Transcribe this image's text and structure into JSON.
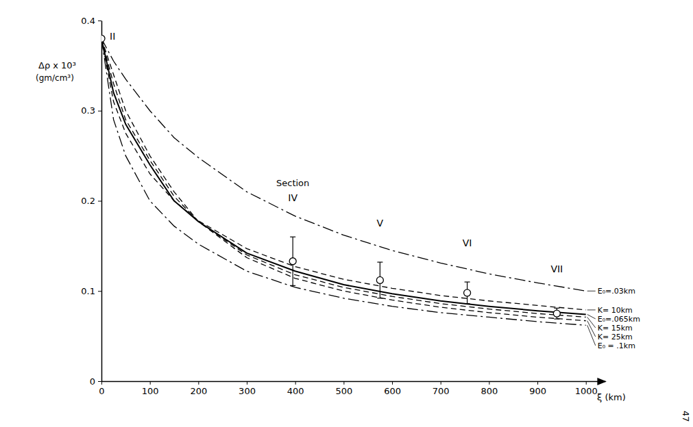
{
  "chart_data": {
    "type": "line",
    "y_label": [
      "Δρ x 10³",
      "(gm/cm³)"
    ],
    "x_label": "ξ (km)",
    "section_label": "Section",
    "page_number": "47",
    "x": [
      0,
      25,
      50,
      100,
      150,
      200,
      300,
      400,
      500,
      600,
      700,
      800,
      900,
      1000
    ],
    "xlim": [
      0,
      1040
    ],
    "xticks": [
      0,
      100,
      200,
      300,
      400,
      500,
      600,
      700,
      800,
      900,
      1000
    ],
    "ylim": [
      0,
      0.4
    ],
    "yticks": [
      0,
      0.1,
      0.2,
      0.3,
      0.4
    ],
    "series": [
      {
        "name": "E₀=.03km",
        "color": "#000000",
        "line_style": "dashdot",
        "values": [
          0.38,
          0.355,
          0.335,
          0.3,
          0.27,
          0.248,
          0.21,
          0.183,
          0.162,
          0.145,
          0.131,
          0.119,
          0.109,
          0.1
        ]
      },
      {
        "name": "K= 10km",
        "color": "#000000",
        "line_style": "dashed",
        "values": [
          0.38,
          0.31,
          0.275,
          0.23,
          0.2,
          0.178,
          0.147,
          0.127,
          0.113,
          0.103,
          0.095,
          0.089,
          0.084,
          0.079
        ]
      },
      {
        "name": "E₀=.065km",
        "color": "#000000",
        "line_style": "solid",
        "values": [
          0.38,
          0.32,
          0.285,
          0.24,
          0.2,
          0.177,
          0.142,
          0.122,
          0.107,
          0.097,
          0.089,
          0.083,
          0.078,
          0.074
        ]
      },
      {
        "name": "K= 15km",
        "color": "#000000",
        "line_style": "dashed",
        "values": [
          0.38,
          0.33,
          0.29,
          0.245,
          0.205,
          0.177,
          0.14,
          0.118,
          0.104,
          0.094,
          0.086,
          0.08,
          0.075,
          0.071
        ]
      },
      {
        "name": "K= 25km",
        "color": "#000000",
        "line_style": "dashed",
        "values": [
          0.38,
          0.34,
          0.3,
          0.25,
          0.21,
          0.177,
          0.137,
          0.114,
          0.1,
          0.09,
          0.082,
          0.076,
          0.071,
          0.067
        ]
      },
      {
        "name": "E₀ = .1km",
        "color": "#000000",
        "line_style": "dashdot",
        "values": [
          0.38,
          0.29,
          0.25,
          0.2,
          0.172,
          0.152,
          0.122,
          0.104,
          0.092,
          0.083,
          0.076,
          0.071,
          0.066,
          0.062
        ]
      }
    ],
    "points": {
      "x": [
        0,
        395,
        575,
        755,
        940
      ],
      "values": [
        0.38,
        0.133,
        0.112,
        0.098,
        0.075
      ],
      "errors": [
        null,
        0.027,
        0.02,
        0.012,
        0.006
      ],
      "labels": [
        "II",
        "IV",
        "V",
        "VI",
        "VII"
      ],
      "marker": "circle",
      "color": "#000000"
    }
  }
}
